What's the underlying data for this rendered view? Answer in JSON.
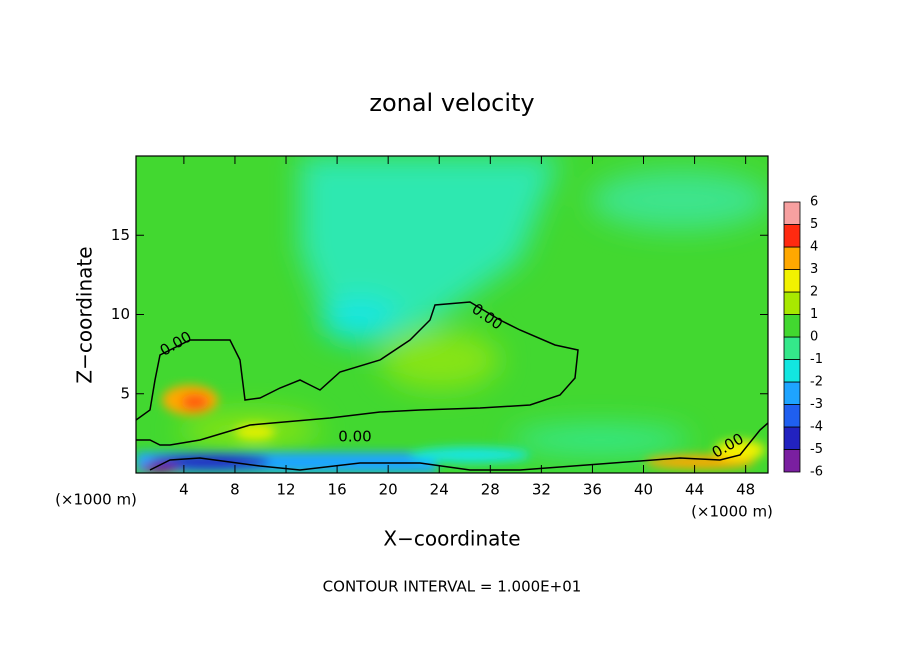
{
  "chart_data": {
    "type": "contour",
    "title": "zonal velocity",
    "x_label": "X−coordinate",
    "y_label": "Z−coordinate",
    "x_unit": "(×1000 m)",
    "footer": "CONTOUR INTERVAL = 1.000E+01",
    "xlim": [
      0.25,
      49.75
    ],
    "ylim": [
      0,
      20
    ],
    "xticks": [
      4,
      8,
      12,
      16,
      20,
      24,
      28,
      32,
      36,
      40,
      44,
      48
    ],
    "yticks": [
      5,
      10,
      15
    ],
    "contour_labels": [
      "0.00",
      "0.00",
      "0.00",
      "0.00"
    ],
    "colorbar": {
      "levels": [
        -6,
        -5,
        -4,
        -3,
        -2,
        -1,
        0,
        1,
        2,
        3,
        4,
        5,
        6
      ],
      "colors": [
        "#7a1fa0",
        "#2222c0",
        "#1f5ff0",
        "#1ea4ff",
        "#12e6e0",
        "#34e88a",
        "#42d830",
        "#a8e800",
        "#f2f200",
        "#ffa800",
        "#ff2a10",
        "#f7a0a0"
      ]
    }
  }
}
